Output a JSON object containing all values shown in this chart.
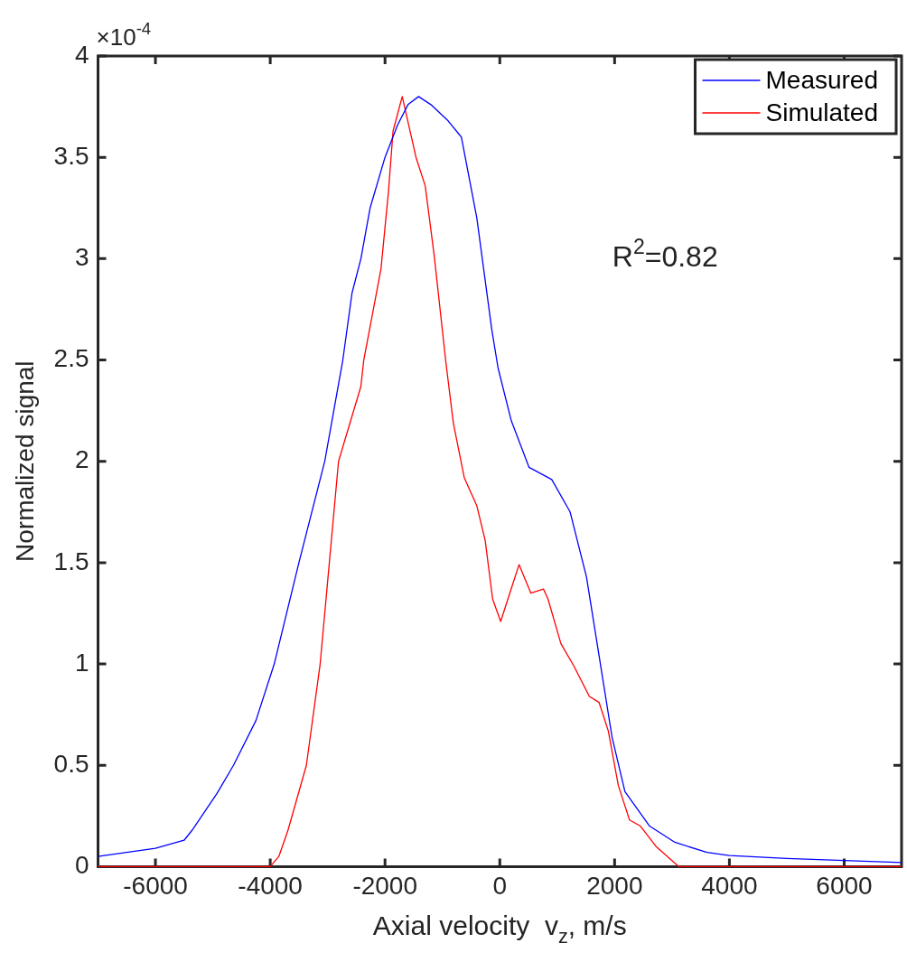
{
  "chart_data": {
    "type": "line",
    "xlabel": "Axial velocity  v$_{z}$, m/s",
    "ylabel": "Normalized signal",
    "xlim": [
      -7000,
      7000
    ],
    "xticks": [
      -6000,
      -4000,
      -2000,
      0,
      2000,
      4000,
      6000
    ],
    "ylim": [
      0,
      4
    ],
    "yticks": [
      0,
      0.5,
      1,
      1.5,
      2,
      2.5,
      3,
      3.5,
      4
    ],
    "legend": "top right",
    "annotations": [
      "×10$^{-4}$",
      "R$^{2}$=0.82"
    ],
    "series": [
      {
        "name": "Measured",
        "color": "#0000ff",
        "x": [
          -7000,
          -6500,
          -6000,
          -5500,
          -5360,
          -4930,
          -4640,
          -4250,
          -3930,
          -3500,
          -3050,
          -2735,
          -2575,
          -2420,
          -2260,
          -2000,
          -1780,
          -1600,
          -1415,
          -1200,
          -900,
          -670,
          -400,
          -140,
          -30,
          200,
          510,
          905,
          1225,
          1510,
          1730,
          1955,
          2180,
          2610,
          3050,
          3610,
          4000,
          5000,
          6000,
          7000
        ],
        "values": [
          0.05,
          0.07,
          0.09,
          0.13,
          0.18,
          0.36,
          0.5,
          0.72,
          1.0,
          1.5,
          2.0,
          2.5,
          2.83,
          3.0,
          3.25,
          3.5,
          3.66,
          3.76,
          3.8,
          3.76,
          3.68,
          3.6,
          3.2,
          2.65,
          2.46,
          2.2,
          1.97,
          1.91,
          1.75,
          1.43,
          1.04,
          0.64,
          0.37,
          0.2,
          0.12,
          0.07,
          0.055,
          0.04,
          0.03,
          0.02
        ]
      },
      {
        "name": "Simulated",
        "color": "#ff0000",
        "x": [
          -7000,
          -4000,
          -3850,
          -3690,
          -3370,
          -3130,
          -2970,
          -2810,
          -2420,
          -2370,
          -2070,
          -1940,
          -1860,
          -1700,
          -1460,
          -1300,
          -1145,
          -940,
          -810,
          -620,
          -400,
          -255,
          -125,
          15,
          175,
          335,
          540,
          760,
          840,
          1065,
          1290,
          1560,
          1730,
          1890,
          2065,
          2260,
          2450,
          2720,
          3120,
          7000
        ],
        "values": [
          0,
          0,
          0.05,
          0.18,
          0.5,
          1.0,
          1.5,
          2.0,
          2.37,
          2.5,
          2.95,
          3.33,
          3.63,
          3.8,
          3.5,
          3.36,
          3.02,
          2.49,
          2.19,
          1.92,
          1.78,
          1.61,
          1.32,
          1.21,
          1.35,
          1.49,
          1.35,
          1.37,
          1.32,
          1.1,
          0.99,
          0.84,
          0.81,
          0.67,
          0.4,
          0.23,
          0.2,
          0.1,
          0,
          0
        ]
      }
    ]
  }
}
